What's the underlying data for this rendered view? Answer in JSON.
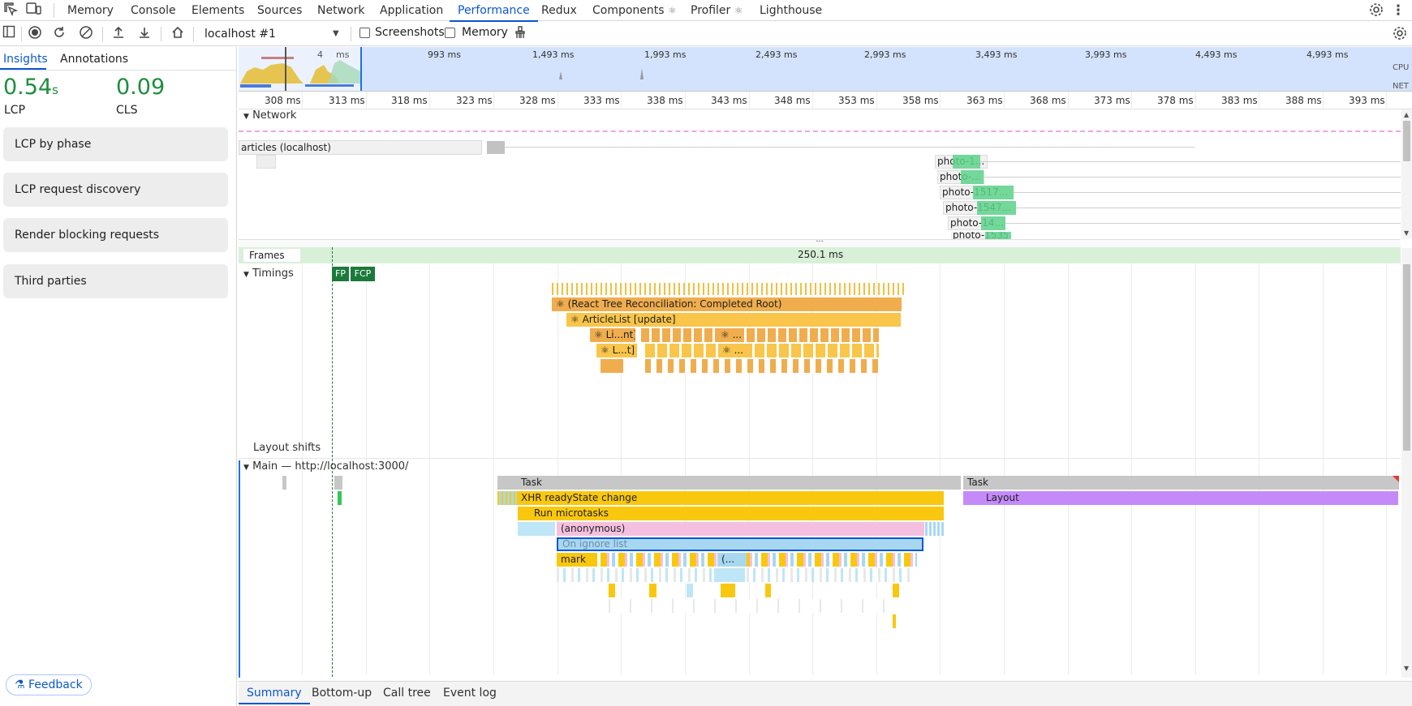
{
  "tabbar": {
    "tabs": [
      "Memory",
      "Console",
      "Elements",
      "Sources",
      "Network",
      "Application",
      "Performance",
      "Redux",
      "Components",
      "Profiler",
      "Lighthouse"
    ],
    "active": "Performance",
    "components_suffix": "⚛",
    "profiler_suffix": "⚛"
  },
  "toolbar": {
    "target": "localhost #1",
    "screenshots_label": "Screenshots",
    "memory_label": "Memory",
    "screenshots_checked": false,
    "memory_checked": false
  },
  "sidebar": {
    "tabs": [
      "Insights",
      "Annotations"
    ],
    "active_tab": "Insights",
    "lcp_value": "0.54",
    "lcp_unit": "s",
    "lcp_label": "LCP",
    "cls_value": "0.09",
    "cls_label": "CLS",
    "good_color": "#1e8e3e",
    "cards": [
      "LCP by phase",
      "LCP request discovery",
      "Render blocking requests",
      "Third parties"
    ],
    "feedback_label": "Feedback"
  },
  "overview": {
    "labels": [
      "4",
      "ms",
      "993 ms",
      "1,493 ms",
      "1,993 ms",
      "2,493 ms",
      "2,993 ms",
      "3,493 ms",
      "3,993 ms",
      "4,493 ms",
      "4,993 ms"
    ],
    "cpu_label": "CPU",
    "net_label": "NET"
  },
  "ruler": {
    "ticks": [
      "308 ms",
      "313 ms",
      "318 ms",
      "323 ms",
      "328 ms",
      "333 ms",
      "338 ms",
      "343 ms",
      "348 ms",
      "353 ms",
      "358 ms",
      "363 ms",
      "368 ms",
      "373 ms",
      "378 ms",
      "383 ms",
      "388 ms",
      "393 ms"
    ]
  },
  "network": {
    "title": "Network",
    "requests": [
      "articles (localhost)",
      "photo-1...",
      "photo-...",
      "photo-1517...",
      "photo-1547...",
      "photo-14...",
      "photo-1535..."
    ]
  },
  "frames": {
    "title": "Frames",
    "duration": "250.1 ms"
  },
  "timings": {
    "title": "Timings",
    "fp": "FP",
    "fcp": "FCP",
    "entries": [
      "⚛ (React Tree Reconciliation: Completed Root)",
      "⚛ ArticleList [update]",
      "⚛ Li...nt]",
      "⚛ ...]",
      "⚛ L...t]",
      "⚛ ..."
    ]
  },
  "layout_shifts": {
    "title": "Layout shifts"
  },
  "main": {
    "title": "Main — http://localhost:3000/",
    "task1": "Task",
    "task2": "Task",
    "xhr": "XHR readyState change",
    "layout": "Layout",
    "microtasks": "Run microtasks",
    "anonymous": "(anonymous)",
    "ignore_list": "On ignore list",
    "mark": "mark",
    "paren": "(..."
  },
  "bottom": {
    "tabs": [
      "Summary",
      "Bottom-up",
      "Call tree",
      "Event log"
    ],
    "active": "Summary"
  },
  "colors": {
    "accent": "#0b57d0",
    "task": "#c7c7c7",
    "scripting": "#f9c80e",
    "react": "#f0ad4e",
    "layout": "#c58af9",
    "anon": "#f5c0e0",
    "ignore": "#a8d8f0",
    "network_img": "#5dd38b",
    "frames": "#d8f0d8",
    "marker_green": "#1b7a3a"
  }
}
